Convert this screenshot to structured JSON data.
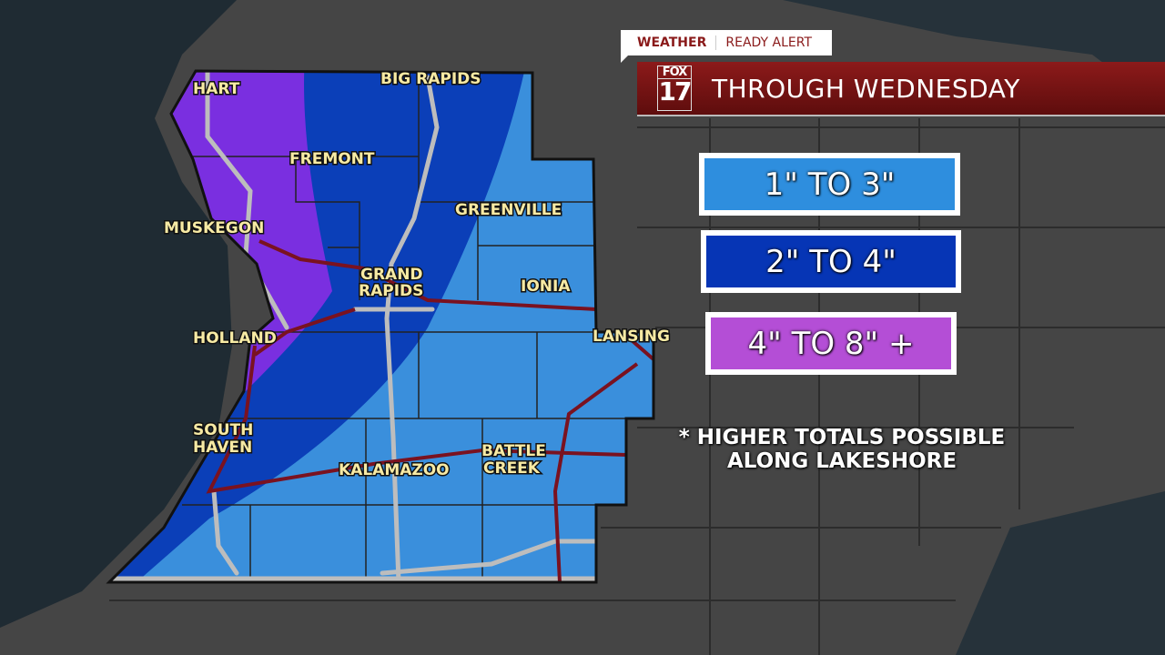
{
  "header": {
    "tag_left": "WEATHER",
    "tag_right": "READY ALERT",
    "logo_top": "FOX",
    "logo_bottom": "17",
    "title": "THROUGH WEDNESDAY"
  },
  "legend": [
    {
      "label": "1\" TO 3\"",
      "color": "#2e8ede"
    },
    {
      "label": "2\" TO 4\"",
      "color": "#0635b5"
    },
    {
      "label": "4\" TO 8\" +",
      "color": "#b44ed6"
    }
  ],
  "note": [
    "* HIGHER TOTALS POSSIBLE",
    "ALONG LAKESHORE"
  ],
  "map": {
    "cities": [
      "HART",
      "BIG RAPIDS",
      "FREMONT",
      "GREENVILLE",
      "MUSKEGON",
      "GRAND",
      "RAPIDS",
      "IONIA",
      "LANSING",
      "HOLLAND",
      "SOUTH",
      "HAVEN",
      "KALAMAZOO",
      "BATTLE",
      "CREEK"
    ],
    "zone_colors": {
      "light": "#3a8fdc",
      "dark": "#0b3fb8",
      "purple": "#7a2fe0"
    }
  }
}
